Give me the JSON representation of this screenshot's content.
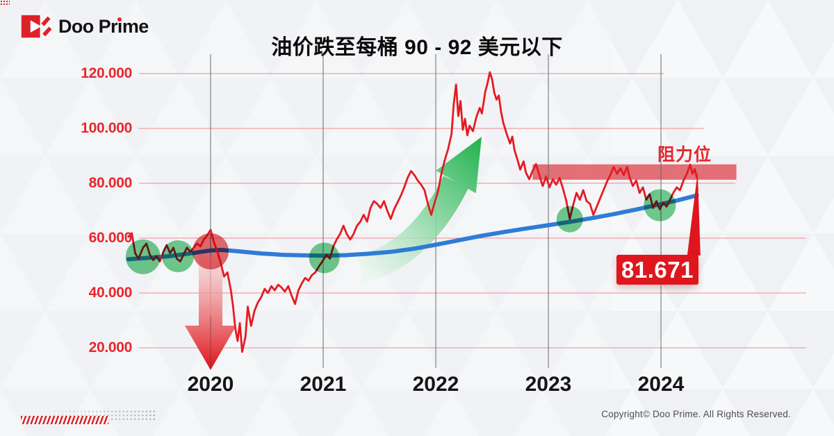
{
  "meta": {
    "copyright": "Copyright© Doo Prime. All Rights Reserved."
  },
  "logo": {
    "full_name": "Doo Prime",
    "pre": "Doo Pr",
    "i_char": "i",
    "post": "me",
    "brand_red": "#df2029"
  },
  "title": "油价跌至每桶 90 - 92 美元以下",
  "chart_data": {
    "type": "line",
    "title": "油价跌至每桶 90 - 92 美元以下",
    "x_ticks": [
      2020,
      2021,
      2022,
      2023,
      2024
    ],
    "y_ticks": [
      "120.000",
      "100.000",
      "80.000",
      "60.000",
      "40.000",
      "20.000"
    ],
    "y_tick_values": [
      120,
      100,
      80,
      60,
      40,
      20
    ],
    "grid_right_edges": [
      955,
      1013,
      1058,
      1160,
      1160,
      1160
    ],
    "xlim": [
      2019.27,
      2024.72
    ],
    "ylim": [
      8,
      126
    ],
    "grid": true,
    "colors": {
      "price_line": "#e41b22",
      "trend_line": "#2e7cd6",
      "h_grid": "#ef8a8e",
      "v_grid": "#666666",
      "band": "#dc434b",
      "accent_red": "#df161d",
      "highlight_green": "#4ec173",
      "highlight_red": "#e2484e"
    },
    "series": [
      {
        "name": "oil-price",
        "color": "#e41b22",
        "points": [
          [
            2019.27,
            60.5
          ],
          [
            2019.3,
            61.8
          ],
          [
            2019.33,
            54.5
          ],
          [
            2019.36,
            52.5
          ],
          [
            2019.4,
            56.5
          ],
          [
            2019.43,
            58.0
          ],
          [
            2019.46,
            54.0
          ],
          [
            2019.49,
            52.0
          ],
          [
            2019.52,
            53.5
          ],
          [
            2019.55,
            51.5
          ],
          [
            2019.58,
            55.0
          ],
          [
            2019.61,
            57.5
          ],
          [
            2019.64,
            54.5
          ],
          [
            2019.67,
            56.5
          ],
          [
            2019.7,
            52.5
          ],
          [
            2019.73,
            51.5
          ],
          [
            2019.76,
            54.0
          ],
          [
            2019.79,
            56.5
          ],
          [
            2019.82,
            55.0
          ],
          [
            2019.85,
            56.5
          ],
          [
            2019.88,
            58.0
          ],
          [
            2019.91,
            57.0
          ],
          [
            2019.94,
            59.5
          ],
          [
            2019.97,
            61.0
          ],
          [
            2020.0,
            63.0
          ],
          [
            2020.03,
            58.5
          ],
          [
            2020.06,
            55.0
          ],
          [
            2020.09,
            51.0
          ],
          [
            2020.12,
            46.0
          ],
          [
            2020.15,
            47.5
          ],
          [
            2020.18,
            41.0
          ],
          [
            2020.2,
            35.0
          ],
          [
            2020.22,
            27.0
          ],
          [
            2020.24,
            22.5
          ],
          [
            2020.26,
            29.0
          ],
          [
            2020.28,
            18.5
          ],
          [
            2020.31,
            24.0
          ],
          [
            2020.33,
            35.0
          ],
          [
            2020.36,
            28.0
          ],
          [
            2020.39,
            33.5
          ],
          [
            2020.42,
            36.5
          ],
          [
            2020.45,
            38.5
          ],
          [
            2020.48,
            41.5
          ],
          [
            2020.51,
            40.0
          ],
          [
            2020.54,
            42.5
          ],
          [
            2020.57,
            41.0
          ],
          [
            2020.6,
            43.0
          ],
          [
            2020.63,
            42.0
          ],
          [
            2020.66,
            40.5
          ],
          [
            2020.69,
            42.5
          ],
          [
            2020.72,
            39.0
          ],
          [
            2020.75,
            36.0
          ],
          [
            2020.78,
            41.0
          ],
          [
            2020.81,
            43.5
          ],
          [
            2020.84,
            45.5
          ],
          [
            2020.87,
            44.5
          ],
          [
            2020.9,
            46.5
          ],
          [
            2020.93,
            47.5
          ],
          [
            2020.96,
            49.5
          ],
          [
            2021.0,
            52.0
          ],
          [
            2021.03,
            54.0
          ],
          [
            2021.06,
            52.5
          ],
          [
            2021.09,
            57.0
          ],
          [
            2021.12,
            59.5
          ],
          [
            2021.15,
            61.5
          ],
          [
            2021.18,
            64.5
          ],
          [
            2021.21,
            61.5
          ],
          [
            2021.24,
            59.5
          ],
          [
            2021.27,
            61.5
          ],
          [
            2021.3,
            64.5
          ],
          [
            2021.33,
            66.0
          ],
          [
            2021.36,
            68.5
          ],
          [
            2021.39,
            66.0
          ],
          [
            2021.42,
            71.0
          ],
          [
            2021.45,
            73.5
          ],
          [
            2021.48,
            72.5
          ],
          [
            2021.51,
            71.0
          ],
          [
            2021.54,
            73.5
          ],
          [
            2021.57,
            70.0
          ],
          [
            2021.6,
            67.0
          ],
          [
            2021.63,
            70.5
          ],
          [
            2021.66,
            73.0
          ],
          [
            2021.69,
            75.5
          ],
          [
            2021.72,
            78.5
          ],
          [
            2021.75,
            82.0
          ],
          [
            2021.78,
            84.5
          ],
          [
            2021.81,
            83.0
          ],
          [
            2021.84,
            81.0
          ],
          [
            2021.87,
            79.5
          ],
          [
            2021.9,
            77.5
          ],
          [
            2021.93,
            72.5
          ],
          [
            2021.96,
            68.5
          ],
          [
            2021.99,
            73.0
          ],
          [
            2022.02,
            77.0
          ],
          [
            2022.05,
            83.5
          ],
          [
            2022.08,
            88.5
          ],
          [
            2022.11,
            92.5
          ],
          [
            2022.14,
            98.0
          ],
          [
            2022.16,
            109.0
          ],
          [
            2022.18,
            116.0
          ],
          [
            2022.2,
            104.5
          ],
          [
            2022.22,
            110.0
          ],
          [
            2022.24,
            99.5
          ],
          [
            2022.26,
            103.5
          ],
          [
            2022.28,
            97.5
          ],
          [
            2022.3,
            101.0
          ],
          [
            2022.33,
            99.0
          ],
          [
            2022.36,
            104.0
          ],
          [
            2022.39,
            107.5
          ],
          [
            2022.41,
            105.5
          ],
          [
            2022.44,
            113.5
          ],
          [
            2022.46,
            116.5
          ],
          [
            2022.48,
            120.5
          ],
          [
            2022.5,
            118.0
          ],
          [
            2022.52,
            113.0
          ],
          [
            2022.54,
            110.5
          ],
          [
            2022.56,
            112.0
          ],
          [
            2022.58,
            106.0
          ],
          [
            2022.6,
            102.0
          ],
          [
            2022.63,
            98.0
          ],
          [
            2022.66,
            94.5
          ],
          [
            2022.68,
            97.0
          ],
          [
            2022.7,
            92.0
          ],
          [
            2022.73,
            88.0
          ],
          [
            2022.75,
            85.0
          ],
          [
            2022.78,
            88.0
          ],
          [
            2022.8,
            84.0
          ],
          [
            2022.83,
            81.5
          ],
          [
            2022.86,
            84.5
          ],
          [
            2022.89,
            87.0
          ],
          [
            2022.92,
            83.0
          ],
          [
            2022.95,
            79.0
          ],
          [
            2022.98,
            82.5
          ],
          [
            2023.01,
            78.5
          ],
          [
            2023.04,
            81.5
          ],
          [
            2023.07,
            79.5
          ],
          [
            2023.1,
            82.0
          ],
          [
            2023.13,
            78.0
          ],
          [
            2023.16,
            73.5
          ],
          [
            2023.19,
            67.0
          ],
          [
            2023.22,
            72.0
          ],
          [
            2023.25,
            76.5
          ],
          [
            2023.28,
            74.0
          ],
          [
            2023.31,
            77.5
          ],
          [
            2023.34,
            73.5
          ],
          [
            2023.37,
            72.5
          ],
          [
            2023.4,
            68.5
          ],
          [
            2023.43,
            71.5
          ],
          [
            2023.46,
            74.5
          ],
          [
            2023.49,
            77.5
          ],
          [
            2023.52,
            80.5
          ],
          [
            2023.55,
            83.0
          ],
          [
            2023.58,
            86.0
          ],
          [
            2023.61,
            83.5
          ],
          [
            2023.64,
            85.5
          ],
          [
            2023.67,
            83.0
          ],
          [
            2023.7,
            86.0
          ],
          [
            2023.72,
            82.5
          ],
          [
            2023.75,
            79.0
          ],
          [
            2023.78,
            81.0
          ],
          [
            2023.81,
            76.5
          ],
          [
            2023.84,
            78.5
          ],
          [
            2023.87,
            74.0
          ],
          [
            2023.9,
            76.0
          ],
          [
            2023.93,
            71.0
          ],
          [
            2023.96,
            73.5
          ],
          [
            2023.99,
            70.5
          ],
          [
            2024.02,
            73.0
          ],
          [
            2024.05,
            71.5
          ],
          [
            2024.08,
            74.0
          ],
          [
            2024.11,
            76.5
          ],
          [
            2024.14,
            78.5
          ],
          [
            2024.17,
            77.5
          ],
          [
            2024.2,
            81.0
          ],
          [
            2024.23,
            83.5
          ],
          [
            2024.26,
            86.8
          ],
          [
            2024.28,
            83.5
          ],
          [
            2024.3,
            85.2
          ],
          [
            2024.32,
            82.0
          ]
        ]
      },
      {
        "name": "trend",
        "color": "#2e7cd6",
        "points": [
          [
            2019.27,
            52.3
          ],
          [
            2019.45,
            52.8
          ],
          [
            2019.65,
            53.5
          ],
          [
            2019.85,
            54.6
          ],
          [
            2020.0,
            55.5
          ],
          [
            2020.1,
            55.7
          ],
          [
            2020.25,
            55.2
          ],
          [
            2020.45,
            54.4
          ],
          [
            2020.65,
            53.9
          ],
          [
            2020.85,
            53.7
          ],
          [
            2021.0,
            53.6
          ],
          [
            2021.2,
            53.8
          ],
          [
            2021.4,
            54.3
          ],
          [
            2021.6,
            55.0
          ],
          [
            2021.8,
            56.1
          ],
          [
            2022.0,
            57.6
          ],
          [
            2022.2,
            59.2
          ],
          [
            2022.4,
            60.8
          ],
          [
            2022.6,
            62.2
          ],
          [
            2022.8,
            63.5
          ],
          [
            2023.0,
            64.7
          ],
          [
            2023.2,
            66.0
          ],
          [
            2023.4,
            67.4
          ],
          [
            2023.6,
            68.9
          ],
          [
            2023.8,
            70.6
          ],
          [
            2024.0,
            72.4
          ],
          [
            2024.15,
            73.8
          ],
          [
            2024.32,
            75.6
          ]
        ]
      }
    ],
    "annotations": {
      "resistance_label": "阻力位",
      "resistance_band": {
        "x_from": 2022.86,
        "x_to": 2024.67,
        "price_from": 81.3,
        "price_to": 86.9
      },
      "last_price_label": "81.671",
      "last_price_value": 81.671,
      "highlight_circles": [
        {
          "x": 2019.4,
          "value": 53.2,
          "radius": 25,
          "color": "#4ec173"
        },
        {
          "x": 2019.71,
          "value": 53.4,
          "radius": 23,
          "color": "#4ec173"
        },
        {
          "x": 2020.0,
          "value": 55.2,
          "radius": 26,
          "color": "#e2484e"
        },
        {
          "x": 2021.01,
          "value": 52.8,
          "radius": 22,
          "color": "#4ec173"
        },
        {
          "x": 2023.19,
          "value": 66.9,
          "radius": 19,
          "color": "#4ec173"
        },
        {
          "x": 2023.99,
          "value": 72.0,
          "radius": 23,
          "color": "#4ec173"
        }
      ],
      "crash_arrow": {
        "x": 2020.0,
        "from_value": 54,
        "to_value": 12,
        "direction": "down"
      },
      "surge_arrow": {
        "from": [
          2021.35,
          49
        ],
        "to": [
          2022.2,
          83
        ],
        "tip": [
          2022.43,
          97
        ],
        "direction": "up"
      }
    }
  }
}
